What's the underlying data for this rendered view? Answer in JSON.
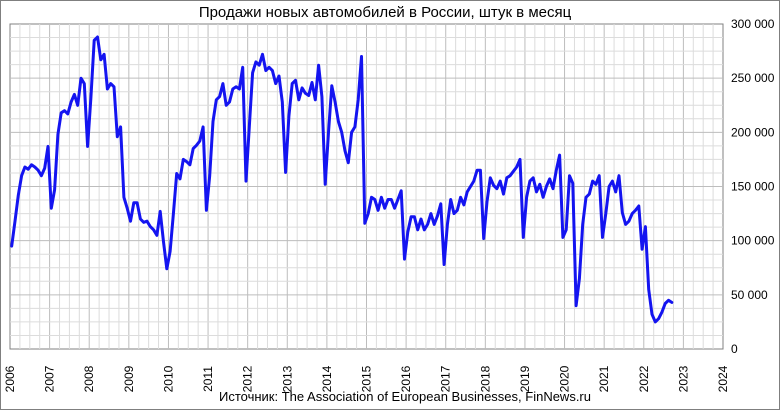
{
  "chart_data": {
    "type": "line",
    "title": "Продажи новых автомобилей в России, штук в месяц",
    "source": "Источник: The Association of European Businesses, FinNews.ru",
    "xlabel": "",
    "ylabel": "",
    "x_ticks": [
      "2006",
      "2007",
      "2008",
      "2009",
      "2010",
      "2011",
      "2012",
      "2013",
      "2014",
      "2015",
      "2016",
      "2017",
      "2018",
      "2019",
      "2020",
      "2021",
      "2022",
      "2023",
      "2024"
    ],
    "y_ticks": [
      "0",
      "50 000",
      "100 000",
      "150 000",
      "200 000",
      "250 000",
      "300 000"
    ],
    "xlim": [
      2006,
      2024
    ],
    "ylim": [
      0,
      300000
    ],
    "grid": true,
    "line_color": "#1414f0",
    "series": [
      {
        "x_start": "2006-01",
        "x_step": "month",
        "values": [
          95000,
          118000,
          142000,
          160000,
          168000,
          166000,
          170000,
          168000,
          165000,
          160000,
          167000,
          187000,
          130000,
          147000,
          198000,
          218000,
          220000,
          217000,
          228000,
          235000,
          225000,
          250000,
          245000,
          187000,
          232000,
          285000,
          288000,
          267000,
          272000,
          240000,
          245000,
          242000,
          196000,
          205000,
          140000,
          130000,
          118000,
          135000,
          135000,
          120000,
          117000,
          118000,
          113000,
          110000,
          105000,
          127000,
          99000,
          74000,
          90000,
          125000,
          162000,
          157000,
          175000,
          173000,
          170000,
          185000,
          188000,
          192000,
          205000,
          128000,
          160000,
          210000,
          230000,
          233000,
          245000,
          225000,
          228000,
          240000,
          242000,
          240000,
          260000,
          155000,
          205000,
          255000,
          265000,
          262000,
          272000,
          257000,
          260000,
          257000,
          245000,
          252000,
          228000,
          163000,
          215000,
          245000,
          248000,
          230000,
          241000,
          236000,
          234000,
          246000,
          230000,
          262000,
          233000,
          152000,
          200000,
          243000,
          228000,
          210000,
          200000,
          183000,
          172000,
          200000,
          205000,
          230000,
          270000,
          116000,
          125000,
          140000,
          138000,
          128000,
          140000,
          130000,
          138000,
          138000,
          130000,
          138000,
          146000,
          83000,
          108000,
          122000,
          122000,
          110000,
          120000,
          110000,
          115000,
          125000,
          115000,
          123000,
          134000,
          78000,
          115000,
          138000,
          125000,
          128000,
          140000,
          133000,
          145000,
          150000,
          155000,
          165000,
          165000,
          102000,
          136000,
          158000,
          151000,
          148000,
          155000,
          143000,
          158000,
          160000,
          164000,
          168000,
          175000,
          103000,
          140000,
          155000,
          158000,
          145000,
          152000,
          140000,
          150000,
          157000,
          148000,
          165000,
          179000,
          103000,
          110000,
          160000,
          153000,
          40000,
          65000,
          115000,
          140000,
          143000,
          155000,
          152000,
          160000,
          103000,
          125000,
          150000,
          155000,
          145000,
          160000,
          126000,
          115000,
          118000,
          125000,
          128000,
          132000,
          92000,
          113000,
          55000,
          32000,
          25000,
          28000,
          34000,
          42000,
          45000,
          43000
        ]
      }
    ]
  }
}
